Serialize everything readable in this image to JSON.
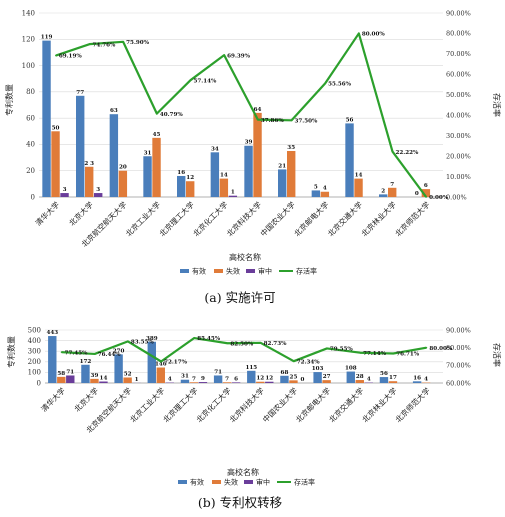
{
  "colors": {
    "valid": "#4a7ebb",
    "invalid": "#e07b39",
    "review": "#6a3d9a",
    "rate": "#2ca02c"
  },
  "legend": {
    "valid": "有效",
    "invalid": "失效",
    "review": "审中",
    "rate": "存活率"
  },
  "chart_data": [
    {
      "type": "bar",
      "caption": "(a) 实施许可",
      "xlabel": "高校名称",
      "ylabel": "专利数量",
      "y2label": "存活率",
      "ylim": [
        0,
        140
      ],
      "yticks": [
        "0",
        "20",
        "40",
        "60",
        "80",
        "100",
        "120",
        "140"
      ],
      "y2lim": [
        0,
        90
      ],
      "y2ticks": [
        "0.00%",
        "10.00%",
        "20.00%",
        "30.00%",
        "40.00%",
        "50.00%",
        "60.00%",
        "70.00%",
        "80.00%",
        "90.00%"
      ],
      "categories": [
        "清华大学",
        "北京大学",
        "北京航空航天大学",
        "北京工业大学",
        "北京理工大学",
        "北京化工大学",
        "北京科技大学",
        "中国农业大学",
        "北京邮电大学",
        "北京交通大学",
        "北京林业大学",
        "北京师范大学"
      ],
      "series": [
        {
          "name": "有效",
          "values": [
            119,
            77,
            63,
            31,
            16,
            34,
            39,
            21,
            5,
            56,
            2,
            0
          ],
          "labels": [
            "119",
            "77",
            "63",
            "31",
            "16",
            "34",
            "39",
            "21",
            "5",
            "56",
            "2",
            "0"
          ]
        },
        {
          "name": "失效",
          "values": [
            50,
            23,
            20,
            45,
            12,
            14,
            64,
            35,
            4,
            14,
            7,
            6
          ],
          "labels": [
            "50",
            "2 3",
            "20",
            "45",
            "12",
            "14",
            "64",
            "35",
            "4",
            "14",
            "7",
            "6"
          ]
        },
        {
          "name": "审中",
          "values": [
            3,
            3,
            0,
            0,
            0,
            1,
            0,
            0,
            0,
            0,
            0,
            0
          ],
          "labels": [
            "3",
            "3",
            "",
            "",
            "",
            "1",
            "",
            "",
            "",
            "",
            "",
            ""
          ]
        }
      ],
      "rate": {
        "name": "存活率",
        "values": [
          69.19,
          74.76,
          75.9,
          40.79,
          57.14,
          69.39,
          37.86,
          37.5,
          55.56,
          80.0,
          22.22,
          0.0
        ],
        "labels": [
          "69.19%",
          "74.76%",
          "75.90%",
          "40.79%",
          "57.14%",
          "69.39%",
          "37.86%",
          "37.50%",
          "55.56%",
          "80.00%",
          "22.22%",
          "0.00%"
        ]
      },
      "legend_position": "bottom"
    },
    {
      "type": "bar",
      "caption": "(b) 专利权转移",
      "xlabel": "高校名称",
      "ylabel": "专利数量",
      "y2label": "存活率",
      "ylim": [
        0,
        500
      ],
      "yticks": [
        "0",
        "100",
        "200",
        "300",
        "400",
        "500"
      ],
      "y2lim": [
        60,
        90
      ],
      "y2ticks": [
        "60.00%",
        "70.00%",
        "80.00%",
        "90.00%"
      ],
      "categories": [
        "清华大学",
        "北京大学",
        "北京航空航天大学",
        "北京工业大学",
        "北京理工大学",
        "北京化工大学",
        "北京科技大学",
        "中国农业大学",
        "北京邮电大学",
        "北京交通大学",
        "北京林业大学",
        "北京师范大学"
      ],
      "series": [
        {
          "name": "有效",
          "values": [
            443,
            172,
            270,
            389,
            31,
            71,
            115,
            68,
            103,
            108,
            56,
            16
          ],
          "labels": [
            "443",
            "172",
            "270",
            "389",
            "31",
            "71",
            "115",
            "68",
            "103",
            "108",
            "56",
            "16"
          ]
        },
        {
          "name": "失效",
          "values": [
            58,
            39,
            52,
            146,
            7,
            7,
            12,
            25,
            27,
            28,
            17,
            4
          ],
          "labels": [
            "58",
            "39",
            "52",
            "146",
            "7",
            "7",
            "12",
            "25",
            "27",
            "28",
            "17",
            "4"
          ]
        },
        {
          "name": "审中",
          "values": [
            71,
            14,
            1,
            4,
            9,
            6,
            12,
            0,
            0,
            4,
            0,
            0
          ],
          "labels": [
            "71",
            "14",
            "1",
            "4",
            "9",
            "6",
            "12",
            "0",
            "",
            "4",
            "",
            ""
          ]
        }
      ],
      "rate": {
        "name": "存活率",
        "values": [
          77.45,
          76.44,
          83.55,
          72.17,
          85.45,
          82.5,
          82.73,
          72.34,
          79.55,
          77.14,
          76.71,
          80.0
        ],
        "labels": [
          "77.45%",
          "76.44%",
          "83.55%",
          "72.17%",
          "85.45%",
          "82.50%",
          "82.73%",
          "72.34%",
          "79.55%",
          "77.14%",
          "76.71%",
          "80.00%"
        ]
      },
      "legend_position": "bottom"
    }
  ]
}
